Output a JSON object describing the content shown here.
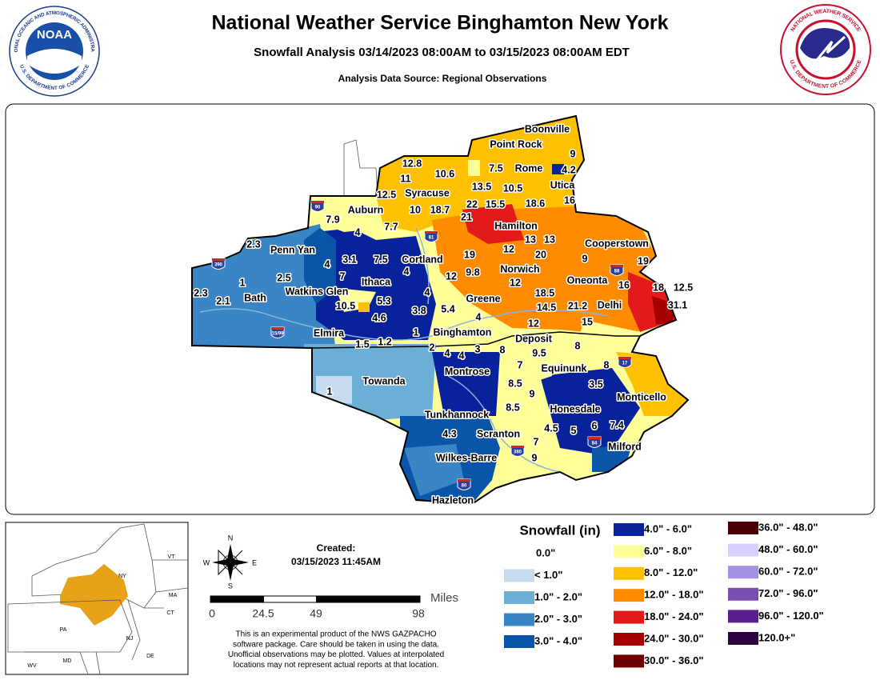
{
  "header": {
    "title": "National Weather Service Binghamton New York",
    "subtitle": "Snowfall Analysis 03/14/2023 08:00AM to 03/15/2023 08:00AM EDT",
    "source": "Analysis Data Source: Regional Observations"
  },
  "logos": {
    "noaa": "NOAA",
    "noaa_ring_top": "NATIONAL OCEANIC AND ATMOSPHERIC ADMINISTRATION",
    "noaa_ring_bottom": "U.S. DEPARTMENT OF COMMERCE",
    "nws_ring_top": "NATIONAL WEATHER SERVICE",
    "nws_ring_bottom": "U.S. DEPARTMENT OF COMMERCE"
  },
  "map": {
    "places": [
      "Boonville",
      "Point Rock",
      "Rome",
      "Utica",
      "Syracuse",
      "Auburn",
      "Hamilton",
      "Cooperstown",
      "Penn Yan",
      "Cortland",
      "Norwich",
      "Oneonta",
      "Ithaca",
      "Watkins Glen",
      "Bath",
      "Greene",
      "Delhi",
      "Elmira",
      "Binghamton",
      "Deposit",
      "Equinunk",
      "Montrose",
      "Towanda",
      "Monticello",
      "Honesdale",
      "Tunkhannock",
      "Scranton",
      "Milford",
      "Wilkes-Barre",
      "Hazleton"
    ],
    "observations": [
      12.8,
      11,
      10.6,
      7.5,
      9,
      4.2,
      12.5,
      13.5,
      10.5,
      16,
      10,
      18.7,
      22,
      15.5,
      18.6,
      21,
      7.9,
      7.7,
      4,
      13,
      13,
      2.3,
      12,
      20,
      9,
      19,
      4,
      3.1,
      7.5,
      7,
      4,
      19,
      9.8,
      12,
      2.5,
      1,
      12,
      16,
      18,
      12.5,
      2.3,
      2.1,
      18.5,
      4,
      10.5,
      5.3,
      21.2,
      31.1,
      14.5,
      3.8,
      5.4,
      4.6,
      4,
      15,
      12,
      1,
      1.5,
      1.2,
      8,
      2,
      4,
      4,
      3,
      8,
      9.5,
      8,
      7,
      3.5,
      8.5,
      9,
      1,
      8.5,
      6,
      7.4,
      4.5,
      5,
      4.3,
      7,
      9
    ],
    "highways": [
      "90",
      "81",
      "88",
      "390",
      "15/99",
      "17",
      "84",
      "380",
      "80"
    ]
  },
  "inset": {
    "states": [
      "VT",
      "NY",
      "MA",
      "CT",
      "PA",
      "NJ",
      "MD",
      "WV",
      "DE"
    ]
  },
  "compass": {
    "n": "N",
    "s": "S",
    "e": "E",
    "w": "W"
  },
  "created": {
    "label": "Created:",
    "timestamp": "03/15/2023 11:45AM"
  },
  "scale": {
    "unit": "Miles",
    "ticks": [
      "0",
      "24.5",
      "49",
      "98"
    ]
  },
  "disclaimer": [
    "This is an experimental product of the NWS GAZPACHO",
    "software package. Care should be taken in using the data.",
    "Unofficial observations may be plotted. Values at interpolated",
    "locations may not represent actual reports at that location."
  ],
  "legend": {
    "title": "Snowfall (in)",
    "items": [
      {
        "label": "0.0\"",
        "color": "#ffffff"
      },
      {
        "label": "< 1.0\"",
        "color": "#c6dcee"
      },
      {
        "label": "1.0\" - 2.0\"",
        "color": "#6baed6"
      },
      {
        "label": "2.0\" - 3.0\"",
        "color": "#3a85c6"
      },
      {
        "label": "3.0\" - 4.0\"",
        "color": "#0a55a8"
      },
      {
        "label": "4.0\" - 6.0\"",
        "color": "#08229c"
      },
      {
        "label": "6.0\" - 8.0\"",
        "color": "#ffff99"
      },
      {
        "label": "8.0\" - 12.0\"",
        "color": "#ffc000"
      },
      {
        "label": "12.0\" - 18.0\"",
        "color": "#ff8c00"
      },
      {
        "label": "18.0\" - 24.0\"",
        "color": "#e31a1c"
      },
      {
        "label": "24.0\" - 30.0\"",
        "color": "#a50000"
      },
      {
        "label": "30.0\" - 36.0\"",
        "color": "#700000"
      },
      {
        "label": "36.0\" - 48.0\"",
        "color": "#4a0000"
      },
      {
        "label": "48.0\" - 60.0\"",
        "color": "#d6d0ff"
      },
      {
        "label": "60.0\" - 72.0\"",
        "color": "#a490e0"
      },
      {
        "label": "72.0\" - 96.0\"",
        "color": "#7b4fb0"
      },
      {
        "label": "96.0\" - 120.0\"",
        "color": "#5a1f8a"
      },
      {
        "label": "120.0+\"",
        "color": "#2d0040"
      }
    ]
  }
}
